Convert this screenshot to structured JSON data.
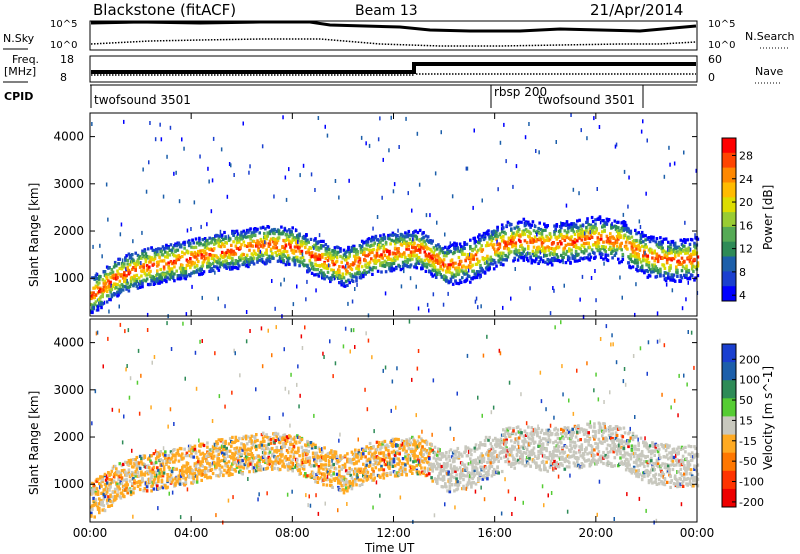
{
  "header": {
    "station": "Blackstone (fitACF)",
    "beam": "Beam 13",
    "date": "21/Apr/2014"
  },
  "top_panels": {
    "nsky_label": "N.Sky",
    "nsearch_label": "N.Search",
    "nsky_ticks": [
      "10^5",
      "10^0"
    ],
    "nsearch_ticks": [
      "10^5",
      "10^0"
    ],
    "freq_label_1": "Freq.",
    "freq_label_2": "[MHz]",
    "freq_ticks": [
      "18",
      "8"
    ],
    "nave_label": "Nave",
    "nave_ticks": [
      "60",
      "0"
    ],
    "cpid_label": "CPID",
    "cpid_segments": [
      {
        "label": "twofsound 3501",
        "start_h": 0,
        "end_h": 16
      },
      {
        "label": "rbsp 200",
        "start_h": 16,
        "end_h": 16
      },
      {
        "label": "twofsound 3501",
        "start_h": 16,
        "end_h": 24
      }
    ],
    "freq_step_hours": [
      0,
      13,
      13,
      24
    ],
    "freq_step_values": [
      10,
      10,
      17.5,
      17.5
    ]
  },
  "chart_data": [
    {
      "type": "heatmap",
      "title": "Power",
      "ylabel": "Slant Range [km]",
      "xlabel": "",
      "ylim": [
        200,
        4500
      ],
      "xlim": [
        0,
        24
      ],
      "yticks": [
        1000,
        2000,
        3000,
        4000
      ],
      "colorbar_label": "Power [dB]",
      "colorbar_ticks": [
        "28",
        "24",
        "20",
        "16",
        "12",
        "8",
        "4"
      ],
      "colorbar_colors": [
        "#ff0000",
        "#ff4400",
        "#ff8800",
        "#ffbb00",
        "#dddd00",
        "#99cc33",
        "#55aa55",
        "#2e8b57",
        "#1c5faa",
        "#1a3fcf",
        "#0000ff"
      ],
      "band_center_km": [
        [
          0,
          650
        ],
        [
          1,
          1050
        ],
        [
          2,
          1250
        ],
        [
          3,
          1350
        ],
        [
          4,
          1450
        ],
        [
          5,
          1600
        ],
        [
          6,
          1650
        ],
        [
          7,
          1750
        ],
        [
          8,
          1700
        ],
        [
          9,
          1450
        ],
        [
          10,
          1250
        ],
        [
          11,
          1500
        ],
        [
          12,
          1600
        ],
        [
          13,
          1650
        ],
        [
          14,
          1300
        ],
        [
          15,
          1400
        ],
        [
          16,
          1700
        ],
        [
          17,
          1850
        ],
        [
          18,
          1750
        ],
        [
          19,
          1800
        ],
        [
          20,
          1900
        ],
        [
          21,
          1800
        ],
        [
          22,
          1500
        ],
        [
          23,
          1400
        ],
        [
          24,
          1450
        ]
      ]
    },
    {
      "type": "heatmap",
      "title": "Velocity",
      "ylabel": "Slant Range [km]",
      "xlabel": "Time UT",
      "ylim": [
        200,
        4500
      ],
      "xlim": [
        0,
        24
      ],
      "yticks": [
        1000,
        2000,
        3000,
        4000
      ],
      "colorbar_label": "Velocity [m s^-1]",
      "colorbar_ticks": [
        "200",
        "100",
        "50",
        "15",
        "-15",
        "-50",
        "-100",
        "-200"
      ],
      "colorbar_colors": [
        "#1a3fcf",
        "#1c5faa",
        "#2e8b57",
        "#55cc33",
        "#c8c8be",
        "#ffaa22",
        "#ff7700",
        "#ff3300",
        "#ee0000"
      ],
      "xticks": [
        "00:00",
        "04:00",
        "08:00",
        "12:00",
        "16:00",
        "20:00",
        "00:00"
      ]
    }
  ]
}
